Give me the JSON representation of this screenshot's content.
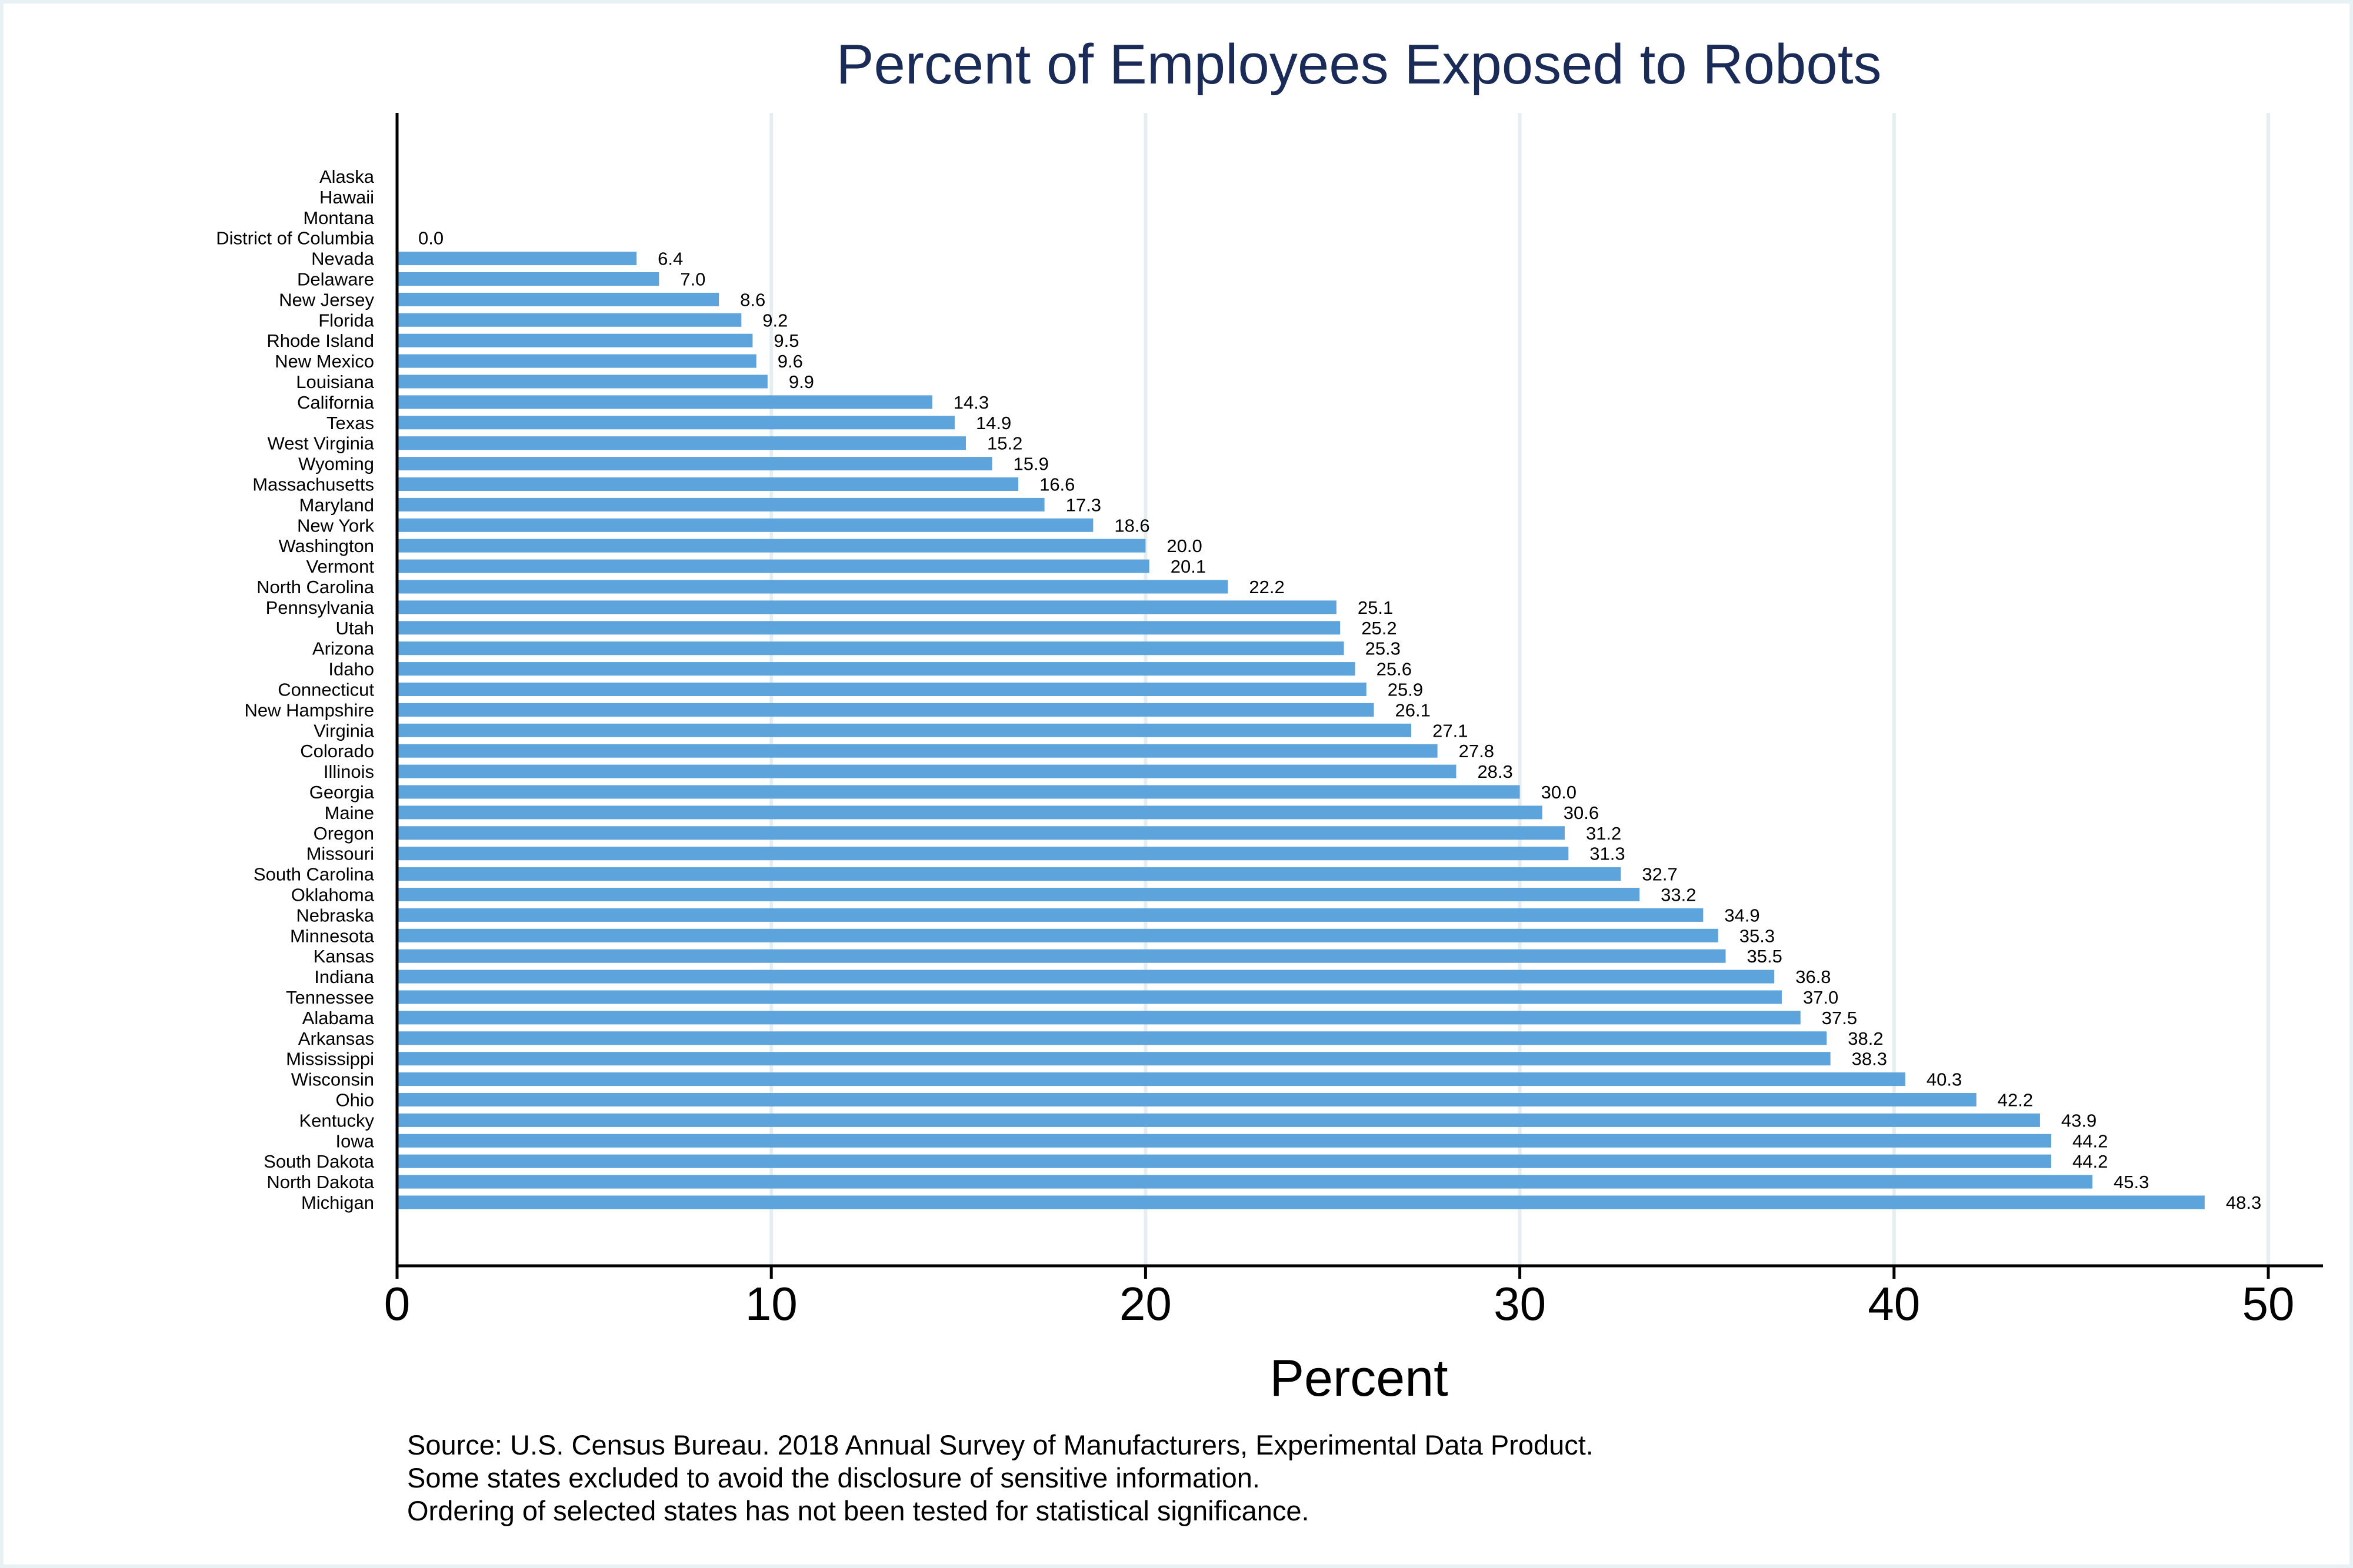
{
  "chart_data": {
    "type": "bar",
    "orientation": "horizontal",
    "title": "Percent of Employees Exposed to Robots",
    "xlabel": "Percent",
    "ylabel": "",
    "xlim": [
      0,
      50
    ],
    "xticks": [
      "0",
      "10",
      "20",
      "30",
      "40",
      "50"
    ],
    "grid": true,
    "bar_color": "#5ea4dc",
    "categories": [
      "Alaska",
      "Hawaii",
      "Montana",
      "District of Columbia",
      "Nevada",
      "Delaware",
      "New Jersey",
      "Florida",
      "Rhode Island",
      "New Mexico",
      "Louisiana",
      "California",
      "Texas",
      "West Virginia",
      "Wyoming",
      "Massachusetts",
      "Maryland",
      "New York",
      "Washington",
      "Vermont",
      "North Carolina",
      "Pennsylvania",
      "Utah",
      "Arizona",
      "Idaho",
      "Connecticut",
      "New Hampshire",
      "Virginia",
      "Colorado",
      "Illinois",
      "Georgia",
      "Maine",
      "Oregon",
      "Missouri",
      "South Carolina",
      "Oklahoma",
      "Nebraska",
      "Minnesota",
      "Kansas",
      "Indiana",
      "Tennessee",
      "Alabama",
      "Arkansas",
      "Mississippi",
      "Wisconsin",
      "Ohio",
      "Kentucky",
      "Iowa",
      "South Dakota",
      "North Dakota",
      "Michigan"
    ],
    "values": [
      null,
      null,
      null,
      0.0,
      6.4,
      7.0,
      8.6,
      9.2,
      9.5,
      9.6,
      9.9,
      14.3,
      14.9,
      15.2,
      15.9,
      16.6,
      17.3,
      18.6,
      20.0,
      20.1,
      22.2,
      25.1,
      25.2,
      25.3,
      25.6,
      25.9,
      26.1,
      27.1,
      27.8,
      28.3,
      30.0,
      30.6,
      31.2,
      31.3,
      32.7,
      33.2,
      34.9,
      35.3,
      35.5,
      36.8,
      37.0,
      37.5,
      38.2,
      38.3,
      40.3,
      42.2,
      43.9,
      44.2,
      44.2,
      45.3,
      48.3
    ],
    "value_labels": [
      "",
      "",
      "",
      "0.0",
      "6.4",
      "7.0",
      "8.6",
      "9.2",
      "9.5",
      "9.6",
      "9.9",
      "14.3",
      "14.9",
      "15.2",
      "15.9",
      "16.6",
      "17.3",
      "18.6",
      "20.0",
      "20.1",
      "22.2",
      "25.1",
      "25.2",
      "25.3",
      "25.6",
      "25.9",
      "26.1",
      "27.1",
      "27.8",
      "28.3",
      "30.0",
      "30.6",
      "31.2",
      "31.3",
      "32.7",
      "33.2",
      "34.9",
      "35.3",
      "35.5",
      "36.8",
      "37.0",
      "37.5",
      "38.2",
      "38.3",
      "40.3",
      "42.2",
      "43.9",
      "44.2",
      "44.2",
      "45.3",
      "48.3"
    ]
  },
  "notes": [
    "Source: U.S. Census Bureau. 2018 Annual Survey of Manufacturers, Experimental Data Product.",
    "Some states excluded to avoid the disclosure of sensitive information.",
    "Ordering of selected states has not been tested for statistical significance."
  ]
}
